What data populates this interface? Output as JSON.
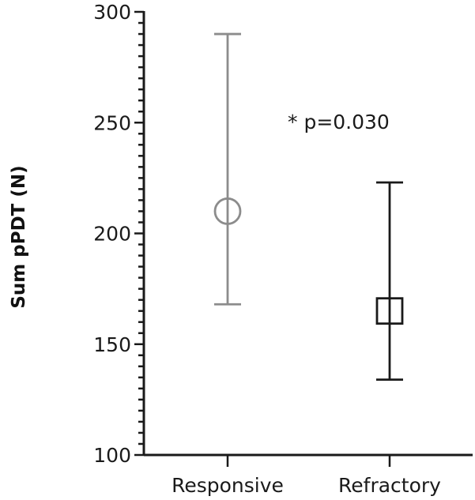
{
  "chart_data": {
    "type": "scatter",
    "title": "",
    "xlabel": "",
    "ylabel": "Sum pPDT (N)",
    "ylim": [
      100,
      300
    ],
    "yticks": [
      100,
      150,
      200,
      250,
      300
    ],
    "yminor_step": 5,
    "grid": false,
    "categories": [
      "Responsive",
      "Refractory"
    ],
    "series": [
      {
        "name": "Responsive",
        "marker": "circle",
        "color": "#8c8c8c",
        "mean": 210,
        "lower": 168,
        "upper": 290
      },
      {
        "name": "Refractory",
        "marker": "square",
        "color": "#1a1a1a",
        "mean": 165,
        "lower": 134,
        "upper": 223
      }
    ],
    "annotations": [
      {
        "text": "* p=0.030",
        "x_between": [
          "Responsive",
          "Refractory"
        ],
        "y": 252
      }
    ]
  },
  "axis": {
    "ylabel": "Sum pPDT (N)",
    "yticks": [
      "100",
      "150",
      "200",
      "250",
      "300"
    ],
    "xticks": [
      "Responsive",
      "Refractory"
    ]
  },
  "annotation": "* p=0.030"
}
